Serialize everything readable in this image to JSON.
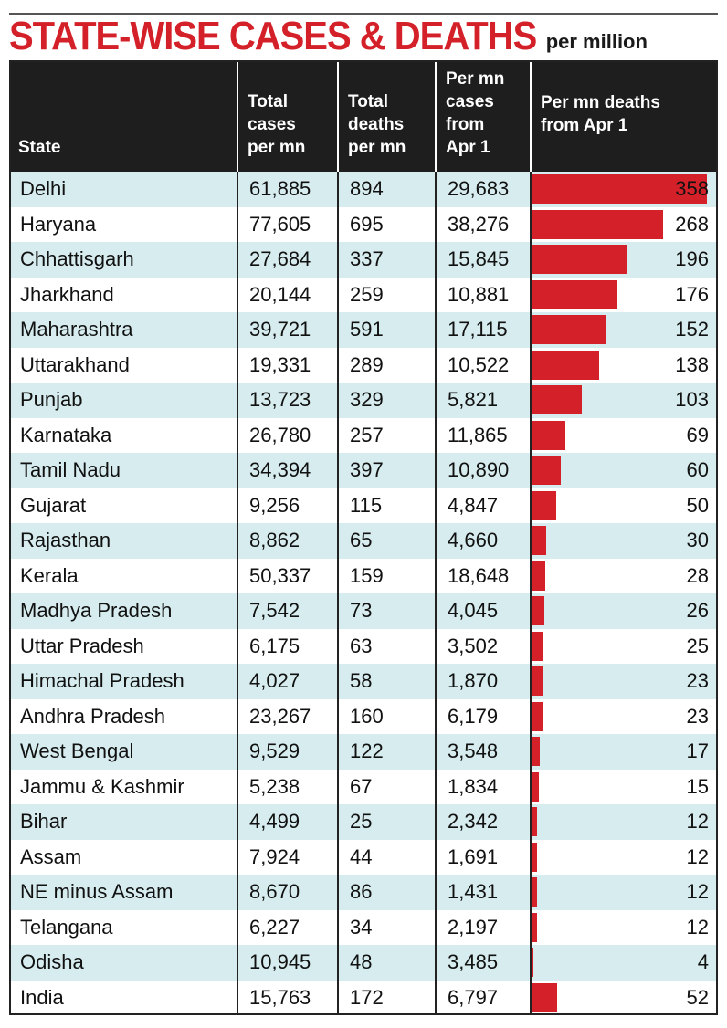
{
  "chart_data": {
    "type": "table",
    "title": "STATE-WISE CASES & DEATHS",
    "subtitle": "per million",
    "columns": [
      "State",
      "Total\ncases\nper mn",
      "Total\ndeaths\nper mn",
      "Per mn\ncases\nfrom\nApr 1",
      "Per mn deaths\nfrom Apr 1"
    ],
    "bar_color": "#d42029",
    "header_bg": "#1e1e1e",
    "stripe_color": "#d6ecee",
    "bar_max": 380,
    "rows": [
      {
        "state": "Delhi",
        "total_cases": "61,885",
        "total_deaths": "894",
        "cases_apr1": "29,683",
        "deaths_apr1": 358
      },
      {
        "state": "Haryana",
        "total_cases": "77,605",
        "total_deaths": "695",
        "cases_apr1": "38,276",
        "deaths_apr1": 268
      },
      {
        "state": "Chhattisgarh",
        "total_cases": "27,684",
        "total_deaths": "337",
        "cases_apr1": "15,845",
        "deaths_apr1": 196
      },
      {
        "state": "Jharkhand",
        "total_cases": "20,144",
        "total_deaths": "259",
        "cases_apr1": "10,881",
        "deaths_apr1": 176
      },
      {
        "state": "Maharashtra",
        "total_cases": "39,721",
        "total_deaths": "591",
        "cases_apr1": "17,115",
        "deaths_apr1": 152
      },
      {
        "state": "Uttarakhand",
        "total_cases": "19,331",
        "total_deaths": "289",
        "cases_apr1": "10,522",
        "deaths_apr1": 138
      },
      {
        "state": "Punjab",
        "total_cases": "13,723",
        "total_deaths": "329",
        "cases_apr1": "5,821",
        "deaths_apr1": 103
      },
      {
        "state": "Karnataka",
        "total_cases": "26,780",
        "total_deaths": "257",
        "cases_apr1": "11,865",
        "deaths_apr1": 69
      },
      {
        "state": "Tamil Nadu",
        "total_cases": "34,394",
        "total_deaths": "397",
        "cases_apr1": "10,890",
        "deaths_apr1": 60
      },
      {
        "state": "Gujarat",
        "total_cases": "9,256",
        "total_deaths": "115",
        "cases_apr1": "4,847",
        "deaths_apr1": 50
      },
      {
        "state": "Rajasthan",
        "total_cases": "8,862",
        "total_deaths": "65",
        "cases_apr1": "4,660",
        "deaths_apr1": 30
      },
      {
        "state": "Kerala",
        "total_cases": "50,337",
        "total_deaths": "159",
        "cases_apr1": "18,648",
        "deaths_apr1": 28
      },
      {
        "state": "Madhya Pradesh",
        "total_cases": "7,542",
        "total_deaths": "73",
        "cases_apr1": "4,045",
        "deaths_apr1": 26
      },
      {
        "state": "Uttar Pradesh",
        "total_cases": "6,175",
        "total_deaths": "63",
        "cases_apr1": "3,502",
        "deaths_apr1": 25
      },
      {
        "state": "Himachal Pradesh",
        "total_cases": "4,027",
        "total_deaths": "58",
        "cases_apr1": "1,870",
        "deaths_apr1": 23
      },
      {
        "state": "Andhra Pradesh",
        "total_cases": "23,267",
        "total_deaths": "160",
        "cases_apr1": "6,179",
        "deaths_apr1": 23
      },
      {
        "state": "West Bengal",
        "total_cases": "9,529",
        "total_deaths": "122",
        "cases_apr1": "3,548",
        "deaths_apr1": 17
      },
      {
        "state": "Jammu & Kashmir",
        "total_cases": "5,238",
        "total_deaths": "67",
        "cases_apr1": "1,834",
        "deaths_apr1": 15
      },
      {
        "state": "Bihar",
        "total_cases": "4,499",
        "total_deaths": "25",
        "cases_apr1": "2,342",
        "deaths_apr1": 12
      },
      {
        "state": "Assam",
        "total_cases": "7,924",
        "total_deaths": "44",
        "cases_apr1": "1,691",
        "deaths_apr1": 12
      },
      {
        "state": "NE minus Assam",
        "total_cases": "8,670",
        "total_deaths": "86",
        "cases_apr1": "1,431",
        "deaths_apr1": 12
      },
      {
        "state": "Telangana",
        "total_cases": "6,227",
        "total_deaths": "34",
        "cases_apr1": "2,197",
        "deaths_apr1": 12
      },
      {
        "state": "Odisha",
        "total_cases": "10,945",
        "total_deaths": "48",
        "cases_apr1": "3,485",
        "deaths_apr1": 4
      },
      {
        "state": "India",
        "total_cases": "15,763",
        "total_deaths": "172",
        "cases_apr1": "6,797",
        "deaths_apr1": 52
      }
    ]
  }
}
